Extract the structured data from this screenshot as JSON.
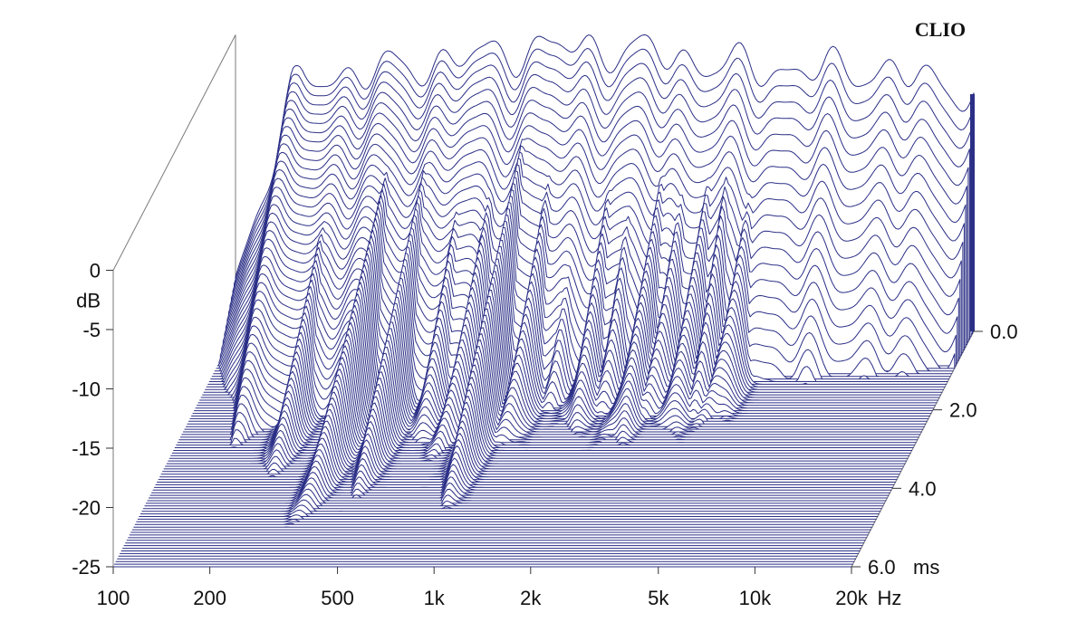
{
  "chart_data": {
    "type": "waterfall-3d",
    "brand": "CLIO",
    "x_axis": {
      "scale": "log",
      "unit": "Hz",
      "range": [
        100,
        20000
      ],
      "ticks": [
        {
          "value": 100,
          "label": "100"
        },
        {
          "value": 200,
          "label": "200"
        },
        {
          "value": 500,
          "label": "500"
        },
        {
          "value": 1000,
          "label": "1k"
        },
        {
          "value": 2000,
          "label": "2k"
        },
        {
          "value": 5000,
          "label": "5k"
        },
        {
          "value": 10000,
          "label": "10k"
        },
        {
          "value": 20000,
          "label": "20k"
        }
      ]
    },
    "y_axis": {
      "unit": "dB",
      "range": [
        -25,
        0
      ],
      "ticks": [
        {
          "value": 0,
          "label": "0"
        },
        {
          "value": -5,
          "label": "-5"
        },
        {
          "value": -10,
          "label": "-10"
        },
        {
          "value": -15,
          "label": "-15"
        },
        {
          "value": -20,
          "label": "-20"
        },
        {
          "value": -25,
          "label": "-25"
        }
      ]
    },
    "z_axis": {
      "unit": "ms",
      "range": [
        0,
        6
      ],
      "ticks": [
        {
          "value": 0,
          "label": "0.0"
        },
        {
          "value": 2,
          "label": "2.0"
        },
        {
          "value": 4,
          "label": "4.0"
        },
        {
          "value": 6,
          "label": "6.0"
        }
      ]
    },
    "slice_count": 90,
    "line_color": "#2b2f86",
    "initial_response_db": [
      {
        "hz": 150,
        "db": -5
      },
      {
        "hz": 160,
        "db": -4
      },
      {
        "hz": 200,
        "db": -3.5
      },
      {
        "hz": 300,
        "db": -3
      },
      {
        "hz": 400,
        "db": -2.5
      },
      {
        "hz": 500,
        "db": -2
      },
      {
        "hz": 700,
        "db": -1.5
      },
      {
        "hz": 1000,
        "db": -1
      },
      {
        "hz": 2000,
        "db": -1.5
      },
      {
        "hz": 3000,
        "db": -2.5
      },
      {
        "hz": 5000,
        "db": -3
      },
      {
        "hz": 10000,
        "db": -3
      },
      {
        "hz": 15000,
        "db": -4
      },
      {
        "hz": 20000,
        "db": -5
      }
    ],
    "resonances": [
      {
        "hz": 220,
        "decay_ms": 4.5
      },
      {
        "hz": 330,
        "decay_ms": 5.6
      },
      {
        "hz": 430,
        "decay_ms": 4.8
      },
      {
        "hz": 560,
        "decay_ms": 3.2
      },
      {
        "hz": 700,
        "decay_ms": 3.6
      },
      {
        "hz": 850,
        "decay_ms": 4.8
      },
      {
        "hz": 1050,
        "decay_ms": 3.2
      },
      {
        "hz": 1300,
        "decay_ms": 2.2
      },
      {
        "hz": 1600,
        "decay_ms": 2.9
      },
      {
        "hz": 1900,
        "decay_ms": 2.3
      },
      {
        "hz": 2300,
        "decay_ms": 3.3
      },
      {
        "hz": 2700,
        "decay_ms": 2.7
      },
      {
        "hz": 3200,
        "decay_ms": 3.1
      },
      {
        "hz": 3700,
        "decay_ms": 2.5
      },
      {
        "hz": 4300,
        "decay_ms": 2.9
      },
      {
        "hz": 5000,
        "decay_ms": 1.6
      },
      {
        "hz": 6200,
        "decay_ms": 1.5
      },
      {
        "hz": 7500,
        "decay_ms": 0.9
      },
      {
        "hz": 9000,
        "decay_ms": 1.3
      },
      {
        "hz": 10500,
        "decay_ms": 0.9
      },
      {
        "hz": 12500,
        "decay_ms": 0.7
      },
      {
        "hz": 15000,
        "decay_ms": 0.6
      }
    ]
  }
}
